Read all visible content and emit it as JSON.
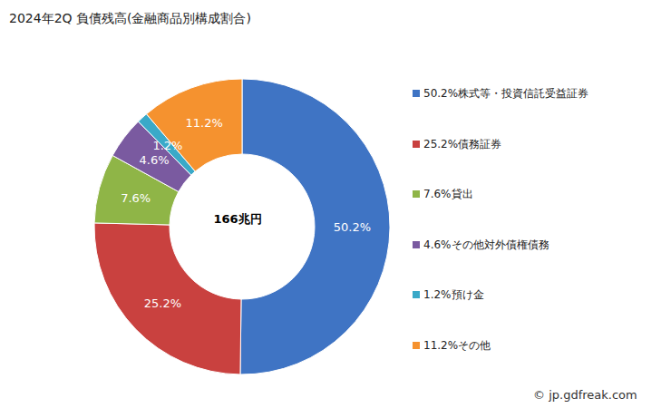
{
  "chart_data": {
    "type": "donut",
    "title": "2024年2Q 負債残高(金融商品別構成割合)",
    "center_text": "166兆円",
    "source": "© jp.gdfreak.com",
    "categories": [
      "株式等・投資信託受益証券",
      "債務証券",
      "貸出",
      "その他対外債権債務",
      "預け金",
      "その他"
    ],
    "values": [
      50.2,
      25.2,
      7.6,
      4.6,
      1.2,
      11.2
    ],
    "value_labels": [
      "50.2%",
      "25.2%",
      "7.6%",
      "4.6%",
      "1.2%",
      "11.2%"
    ],
    "colors": [
      "#3f74c4",
      "#c9413f",
      "#8fb547",
      "#7a5aa0",
      "#3aa9c8",
      "#f5922f"
    ],
    "data_labels": true,
    "legend": "right"
  }
}
